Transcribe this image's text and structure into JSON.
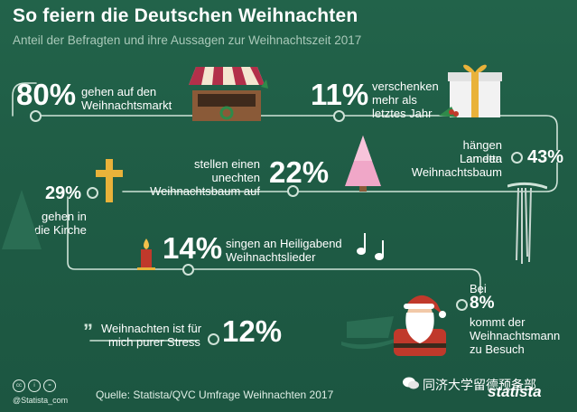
{
  "title": "So feiern die Deutschen Weihnachten",
  "subtitle": "Anteil der Befragten und ihre Aussagen zur Weihnachtszeit 2017",
  "stats": {
    "markt": {
      "value": "80%",
      "line1": "gehen auf den",
      "line2": "Weihnachtsmarkt"
    },
    "geschenke": {
      "value": "11%",
      "line1": "verschenken",
      "line2": "mehr als",
      "line3": "letztes Jahr"
    },
    "lametta": {
      "value": "43%",
      "line1": "hängen Lametta",
      "line2": "an den",
      "line3": "Weihnachtsbaum"
    },
    "baum": {
      "value": "22%",
      "line1": "stellen einen",
      "line2": "unechten",
      "line3": "Weihnachtsbaum auf"
    },
    "kirche": {
      "value": "29%",
      "line1": "gehen in",
      "line2": "die Kirche"
    },
    "lieder": {
      "value": "14%",
      "line1": "singen an Heiligabend",
      "line2": "Weihnachtslieder"
    },
    "weihnachtsmann": {
      "line0": "Bei",
      "value": "8%",
      "line1": "kommt der",
      "line2": "Weihnachtsmann",
      "line3": "zu Besuch"
    },
    "stress": {
      "value": "12%",
      "line1": "Weihnachten ist für",
      "line2": "mich purer Stress"
    }
  },
  "footer": {
    "source": "Quelle: Statista/QVC Umfrage Weihnachten 2017",
    "handle": "@Statista_com",
    "brand": "statista",
    "watermark": "同济大学留德预备部"
  },
  "colors": {
    "background": "#1f5c45",
    "line": "#cfe3d8",
    "muted_text": "#a9c9b9"
  },
  "icons": [
    "market-stall-icon",
    "gift-icon",
    "pink-tree-icon",
    "cross-icon",
    "candle-icon",
    "music-notes-icon",
    "santa-icon",
    "sleigh-icon",
    "tinsel-icon",
    "quote-icon",
    "wechat-icon"
  ]
}
